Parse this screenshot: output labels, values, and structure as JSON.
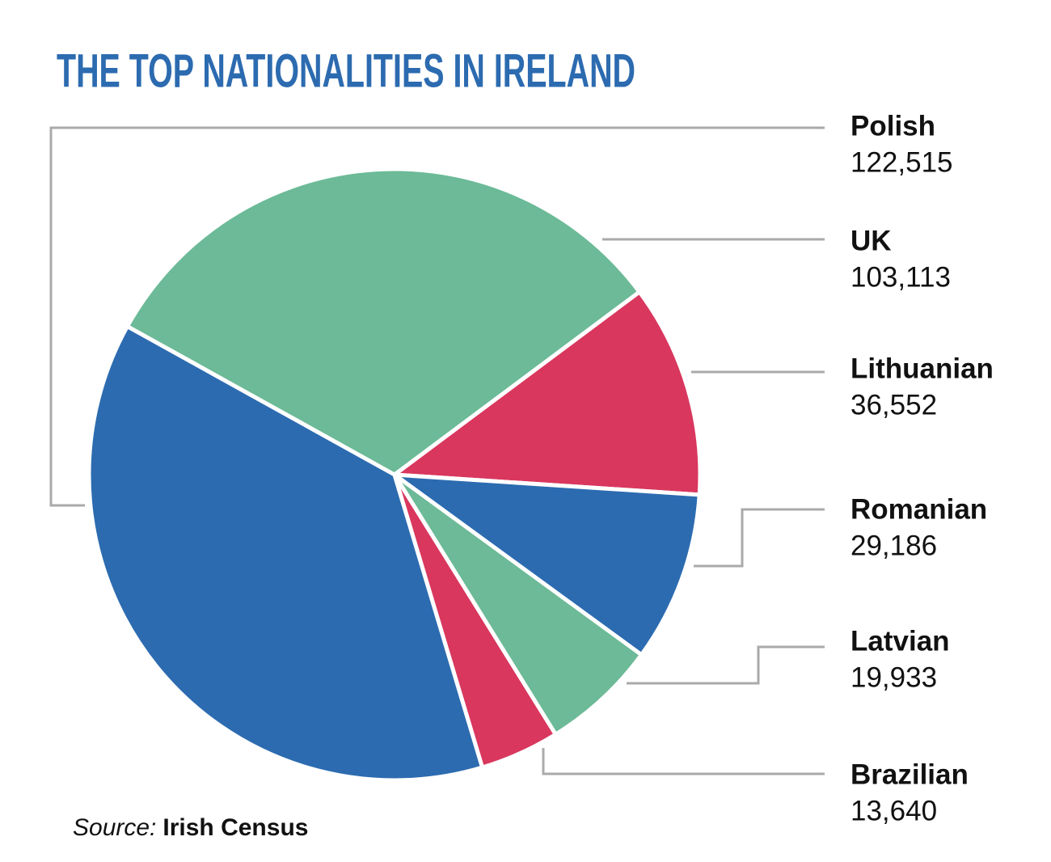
{
  "chart_data": {
    "type": "pie",
    "title": "THE TOP NATIONALITIES IN IRELAND",
    "categories": [
      "Polish",
      "UK",
      "Lithuanian",
      "Romanian",
      "Latvian",
      "Brazilian"
    ],
    "values": [
      122515,
      103113,
      36552,
      29186,
      19933,
      13640
    ],
    "value_labels": [
      "122,515",
      "103,113",
      "36,552",
      "29,186",
      "19,933",
      "13,640"
    ],
    "colors": [
      "#2c6bb0",
      "#6cba97",
      "#d9375e",
      "#2c6bb0",
      "#6cba97",
      "#d9375e"
    ],
    "source_label": "Source:",
    "source": "Irish Census"
  }
}
